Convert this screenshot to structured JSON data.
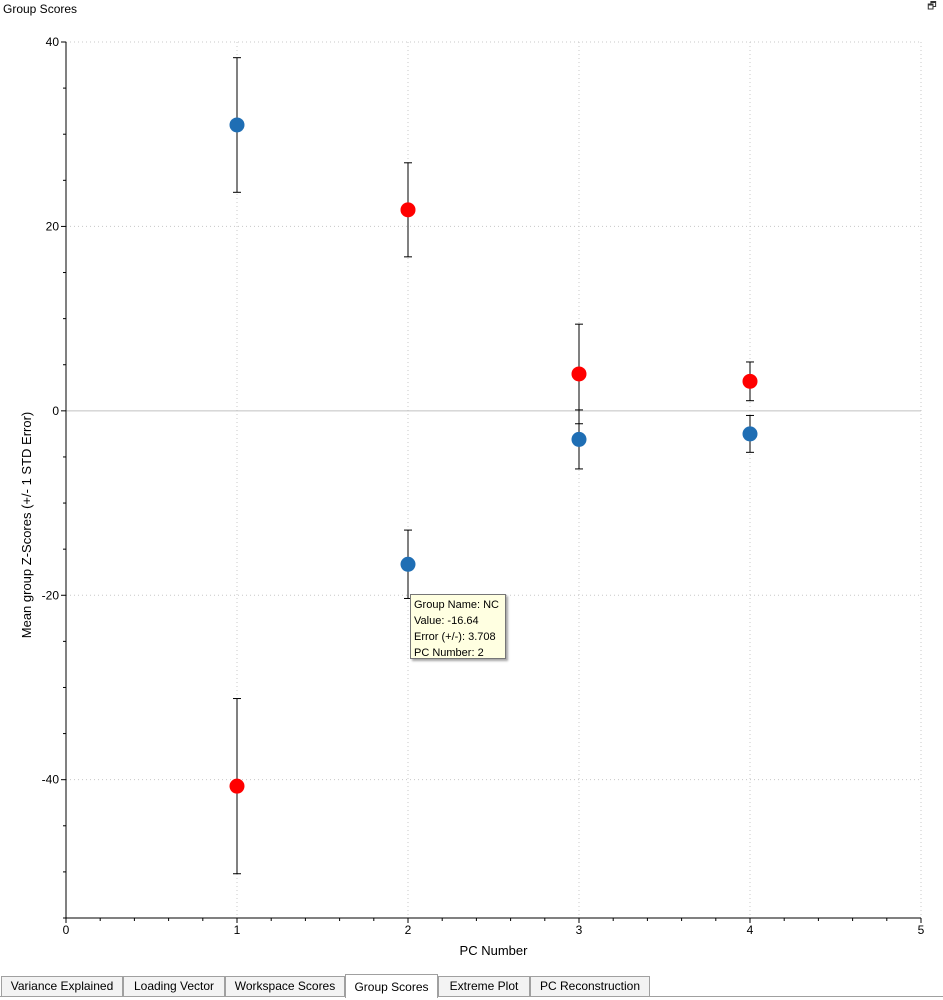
{
  "window": {
    "title": "Group Scores",
    "restore_icon": "restore-window-icon"
  },
  "tooltip": {
    "line1": "Group Name: NC",
    "line2": "Value: -16.64",
    "line3": "Error (+/-): 3.708",
    "line4": "PC Number: 2"
  },
  "tabs": {
    "t0": "Variance Explained",
    "t1": "Loading Vector",
    "t2": "Workspace Scores",
    "t3": "Group Scores",
    "t4": "Extreme Plot",
    "t5": "PC Reconstruction",
    "active": "Group Scores"
  },
  "chart_data": {
    "type": "scatter",
    "xlabel": "PC Number",
    "ylabel": "Mean group Z-Scores (+/- 1 STD Error)",
    "xlim": [
      0,
      5
    ],
    "ylim": [
      -55,
      40
    ],
    "x_ticks": [
      0,
      1,
      2,
      3,
      4,
      5
    ],
    "y_ticks": [
      40,
      20,
      0,
      -20,
      -40
    ],
    "grid": "dotted",
    "zero_line": true,
    "error_bars": true,
    "series": [
      {
        "color": "#1f6eb4",
        "points": [
          {
            "x": 1,
            "y": 31,
            "err": 7.3
          },
          {
            "x": 2,
            "y": -16.64,
            "err": 3.708
          },
          {
            "x": 3,
            "y": -3.1,
            "err": 3.2
          },
          {
            "x": 4,
            "y": -2.5,
            "err": 2.0
          }
        ]
      },
      {
        "color": "#ff0000",
        "points": [
          {
            "x": 1,
            "y": -40.7,
            "err": 9.5
          },
          {
            "x": 2,
            "y": 21.8,
            "err": 5.1
          },
          {
            "x": 3,
            "y": 4.0,
            "err": 5.4
          },
          {
            "x": 4,
            "y": 3.2,
            "err": 2.1
          }
        ]
      }
    ]
  }
}
